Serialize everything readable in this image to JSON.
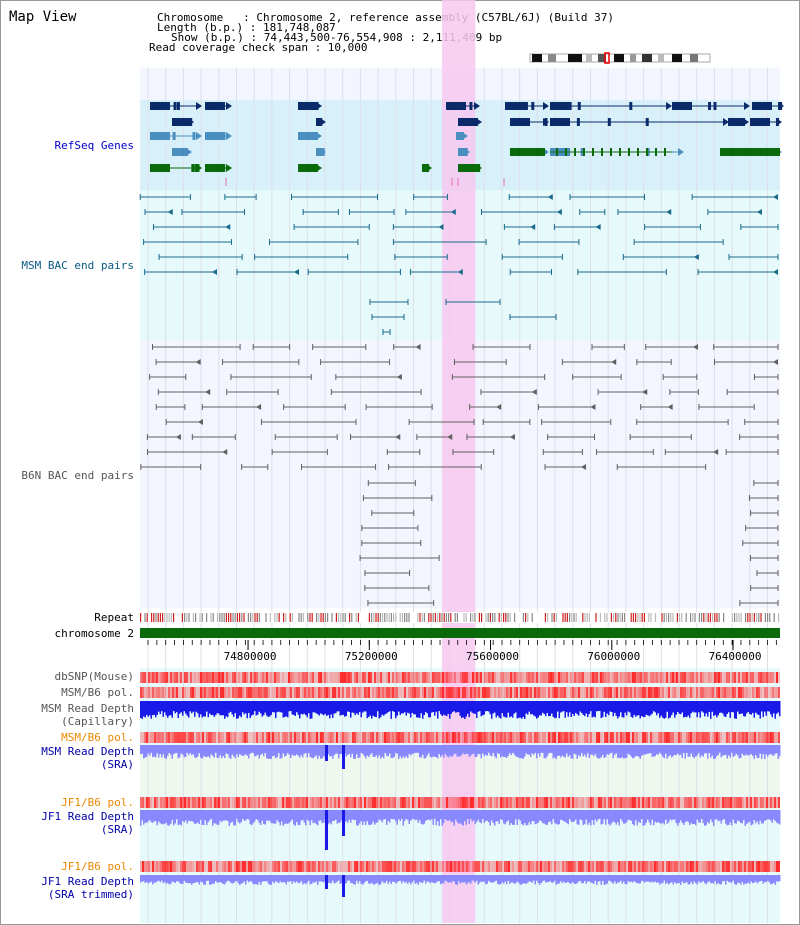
{
  "view": {
    "title": "Map View",
    "chromosome_line": "Chromosome   : Chromosome 2, reference assembly (C57BL/6J) (Build 37)",
    "length_line": "Length (b.p.) : 181,748,087",
    "show_line": "Show (b.p.) : 74,443,500-76,554,908 : 2,111,409 bp",
    "coverage_line": "Read coverage check span : 10,000"
  },
  "tracks": {
    "refseq": {
      "label": "RefSeq Genes",
      "color": "#0000cc"
    },
    "msm_bac": {
      "label": "MSM BAC end pairs",
      "color": "#006688"
    },
    "b6n_bac": {
      "label": "B6N BAC end pairs",
      "color": "#555555"
    },
    "repeat": {
      "label": "Repeat"
    },
    "chromosome": {
      "label": "chromosome 2"
    },
    "dbsnp": {
      "label": "dbSNP(Mouse)"
    },
    "msm_b6_pol_1": {
      "label": "MSM/B6 pol."
    },
    "msm_depth_cap": {
      "label": "MSM Read Depth\n(Capillary)"
    },
    "msm_b6_pol_2": {
      "label": "MSM/B6 pol.",
      "color": "#ee8800"
    },
    "msm_depth_sra": {
      "label": "MSM Read Depth\n(SRA)",
      "color": "#0000aa"
    },
    "jf1_b6_pol_1": {
      "label": "JF1/B6 pol.",
      "color": "#ee8800"
    },
    "jf1_depth_sra": {
      "label": "JF1 Read Depth\n(SRA)",
      "color": "#0000aa"
    },
    "jf1_b6_pol_2": {
      "label": "JF1/B6 pol.",
      "color": "#ee8800"
    },
    "jf1_depth_trim": {
      "label": "JF1 Read Depth\n(SRA trimmed)",
      "color": "#0000aa"
    }
  },
  "axis": {
    "ticks": [
      "74800000",
      "75200000",
      "75600000",
      "76000000",
      "76400000"
    ],
    "tick_values": [
      74800000,
      75200000,
      75600000,
      76000000,
      76400000
    ],
    "range": [
      74443500,
      76554908
    ]
  },
  "highlight": {
    "start": 75440000,
    "end": 75550000,
    "color": "#f7c8f0"
  },
  "colors": {
    "refseq_dark": "#0a2a6a",
    "refseq_mid": "#4a8fc0",
    "refseq_green": "#0a6a0a",
    "msm_line": "#1a6a8a",
    "b6n_line": "#606060",
    "chrom_green": "#0a6a0a",
    "depth_blue": "#1a1ae8",
    "depth_light": "#8888ff",
    "snp_red": "#ff3030"
  }
}
